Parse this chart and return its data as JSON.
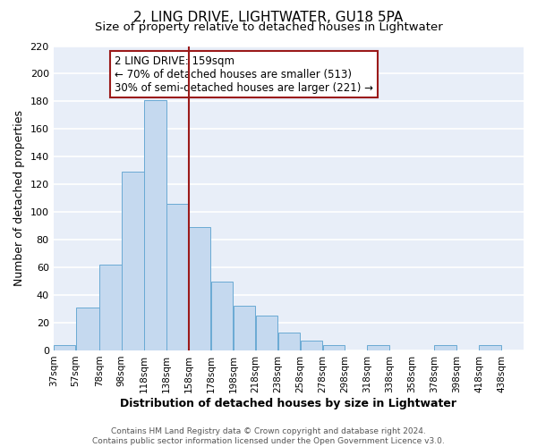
{
  "title": "2, LING DRIVE, LIGHTWATER, GU18 5PA",
  "subtitle": "Size of property relative to detached houses in Lightwater",
  "xlabel": "Distribution of detached houses by size in Lightwater",
  "ylabel": "Number of detached properties",
  "bar_left_edges": [
    37,
    57,
    78,
    98,
    118,
    138,
    158,
    178,
    198,
    218,
    238,
    258,
    278,
    298,
    318,
    338,
    358,
    378,
    398,
    418
  ],
  "bar_widths": [
    20,
    21,
    20,
    20,
    20,
    20,
    20,
    20,
    20,
    20,
    20,
    20,
    20,
    20,
    20,
    20,
    20,
    20,
    20,
    20
  ],
  "bar_heights": [
    4,
    31,
    62,
    129,
    181,
    106,
    89,
    50,
    32,
    25,
    13,
    7,
    4,
    0,
    4,
    0,
    0,
    4,
    0,
    4
  ],
  "bar_color": "#c5d9ef",
  "bar_edge_color": "#6aaad4",
  "vline_x": 158,
  "vline_color": "#9b1a1a",
  "annotation_line1": "2 LING DRIVE: 159sqm",
  "annotation_line2": "← 70% of detached houses are smaller (513)",
  "annotation_line3": "30% of semi-detached houses are larger (221) →",
  "box_edge_color": "#9b1a1a",
  "ylim": [
    0,
    220
  ],
  "yticks": [
    0,
    20,
    40,
    60,
    80,
    100,
    120,
    140,
    160,
    180,
    200,
    220
  ],
  "xtick_labels": [
    "37sqm",
    "57sqm",
    "78sqm",
    "98sqm",
    "118sqm",
    "138sqm",
    "158sqm",
    "178sqm",
    "198sqm",
    "218sqm",
    "238sqm",
    "258sqm",
    "278sqm",
    "298sqm",
    "318sqm",
    "338sqm",
    "358sqm",
    "378sqm",
    "398sqm",
    "418sqm",
    "438sqm"
  ],
  "xtick_positions": [
    37,
    57,
    78,
    98,
    118,
    138,
    158,
    178,
    198,
    218,
    238,
    258,
    278,
    298,
    318,
    338,
    358,
    378,
    398,
    418,
    438
  ],
  "background_color": "#e8eef8",
  "grid_color": "#ffffff",
  "title_fontsize": 11,
  "subtitle_fontsize": 9.5,
  "axis_label_fontsize": 9,
  "tick_fontsize": 8,
  "footer_text": "Contains HM Land Registry data © Crown copyright and database right 2024.\nContains public sector information licensed under the Open Government Licence v3.0."
}
